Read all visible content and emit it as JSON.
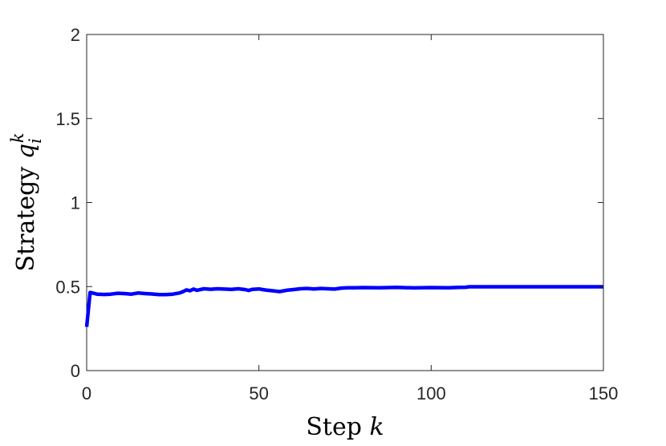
{
  "chart_data": {
    "type": "line",
    "xlabel": {
      "text": "Step ",
      "var": "k"
    },
    "ylabel": {
      "text": "Strategy ",
      "var": "q",
      "sub": "i",
      "sup": "k"
    },
    "xlim": [
      0,
      150
    ],
    "ylim": [
      0,
      2
    ],
    "xticks": [
      0,
      50,
      100,
      150
    ],
    "xtick_labels": [
      "0",
      "50",
      "100",
      "150"
    ],
    "yticks": [
      0,
      0.5,
      1,
      1.5,
      2
    ],
    "ytick_labels": [
      "0",
      "0.5",
      "1",
      "1.5",
      "2"
    ],
    "grid": false,
    "series": [
      {
        "color": "#0000ff",
        "x": [
          0,
          1,
          2,
          3,
          5,
          7,
          9,
          11,
          13,
          15,
          17,
          19,
          21,
          23,
          25,
          27,
          28,
          29,
          30,
          31,
          32,
          34,
          36,
          38,
          40,
          42,
          44,
          46,
          47,
          48,
          50,
          52,
          54,
          56,
          58,
          60,
          62,
          64,
          66,
          68,
          70,
          72,
          74,
          76,
          78,
          80,
          85,
          90,
          95,
          100,
          105,
          108,
          110,
          111,
          120,
          130,
          140,
          150
        ],
        "y": [
          0.26,
          0.465,
          0.46,
          0.455,
          0.453,
          0.455,
          0.46,
          0.458,
          0.455,
          0.462,
          0.458,
          0.456,
          0.452,
          0.452,
          0.455,
          0.462,
          0.47,
          0.48,
          0.475,
          0.485,
          0.478,
          0.487,
          0.484,
          0.487,
          0.485,
          0.483,
          0.487,
          0.482,
          0.477,
          0.483,
          0.486,
          0.479,
          0.475,
          0.47,
          0.478,
          0.482,
          0.487,
          0.489,
          0.486,
          0.489,
          0.487,
          0.485,
          0.491,
          0.493,
          0.493,
          0.494,
          0.493,
          0.495,
          0.492,
          0.494,
          0.493,
          0.495,
          0.496,
          0.499,
          0.499,
          0.499,
          0.499,
          0.499
        ]
      }
    ]
  }
}
